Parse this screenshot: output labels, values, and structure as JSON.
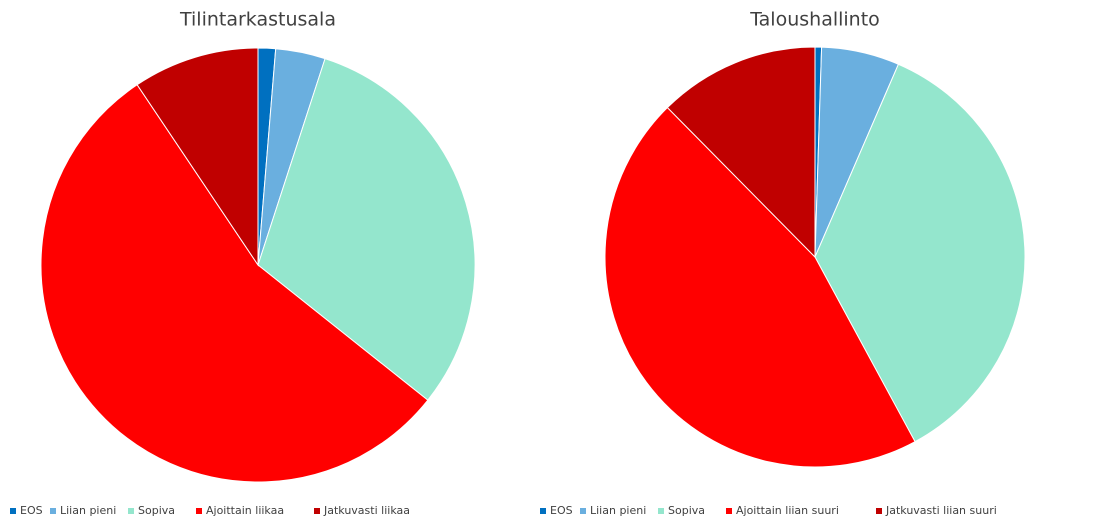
{
  "chart_data": [
    {
      "type": "pie",
      "title": "Tilintarkastusala",
      "categories": [
        "EOS",
        "Liian pieni",
        "Sopiva",
        "Ajoittain liikaa",
        "Jatkuvasti liikaa"
      ],
      "values": [
        1.3,
        3.7,
        30.7,
        54.9,
        9.4
      ],
      "colors": [
        "#0070c0",
        "#6aafdf",
        "#94e6cd",
        "#ff0000",
        "#c00000"
      ]
    },
    {
      "type": "pie",
      "title": "Taloushallinto",
      "categories": [
        "EOS",
        "Liian pieni",
        "Sopiva",
        "Ajoittain liian suuri",
        "Jatkuvasti liian suuri"
      ],
      "values": [
        0.5,
        6.0,
        35.6,
        45.5,
        12.4
      ],
      "colors": [
        "#0070c0",
        "#6aafdf",
        "#94e6cd",
        "#ff0000",
        "#c00000"
      ]
    }
  ]
}
